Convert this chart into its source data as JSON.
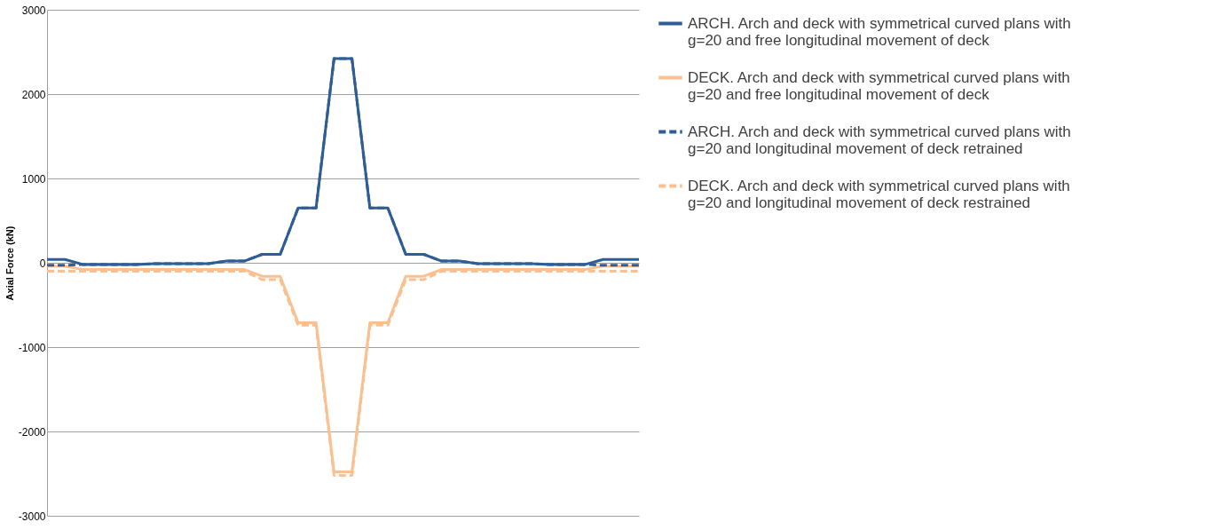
{
  "chart_data": {
    "type": "line",
    "ylabel": "Axial Force (kN)",
    "categories": [
      null,
      null,
      null,
      null,
      null,
      null,
      null,
      null,
      null,
      null,
      null,
      null,
      null,
      null,
      null,
      null,
      null,
      null,
      null,
      null,
      null,
      null,
      null,
      null,
      null,
      null,
      null,
      null,
      null,
      null,
      null,
      null,
      null,
      null
    ],
    "series": [
      {
        "name": "ARCH. Arch and deck with symmetrical curved plans with g=20 and free longitudinal movement of deck",
        "color": "#2f5d95",
        "line_style": "solid",
        "values": [
          40,
          40,
          -20,
          -20,
          -20,
          -20,
          -10,
          -10,
          -10,
          -10,
          20,
          20,
          100,
          100,
          650,
          650,
          2420,
          2420,
          650,
          650,
          100,
          100,
          20,
          20,
          -10,
          -10,
          -10,
          -10,
          -20,
          -20,
          -20,
          40,
          40,
          40
        ]
      },
      {
        "name": "DECK. Arch and deck with symmetrical curved plans with g=20 and free longitudinal movement of deck",
        "color": "#fac090",
        "line_style": "solid",
        "values": [
          -40,
          -40,
          -80,
          -80,
          -80,
          -80,
          -80,
          -80,
          -80,
          -80,
          -80,
          -80,
          -160,
          -160,
          -710,
          -710,
          -2480,
          -2480,
          -710,
          -710,
          -160,
          -160,
          -80,
          -80,
          -80,
          -80,
          -80,
          -80,
          -80,
          -80,
          -80,
          -40,
          -40,
          -40
        ]
      },
      {
        "name": "ARCH. Arch and deck with symmetrical curved plans with g=20 and longitudinal movement of deck retrained",
        "color": "#2f5d95",
        "line_style": "dashed",
        "values": [
          -30,
          -30,
          -20,
          -20,
          -20,
          -20,
          -10,
          -10,
          -10,
          -10,
          20,
          20,
          100,
          100,
          650,
          650,
          2420,
          2420,
          650,
          650,
          100,
          100,
          20,
          20,
          -10,
          -10,
          -10,
          -10,
          -20,
          -20,
          -20,
          -30,
          -30,
          -30
        ]
      },
      {
        "name": "DECK. Arch and deck with symmetrical curved plans with g=20 and longitudinal movement of deck restrained",
        "color": "#fac090",
        "line_style": "dashed",
        "values": [
          -100,
          -100,
          -100,
          -100,
          -100,
          -100,
          -100,
          -100,
          -100,
          -100,
          -100,
          -100,
          -200,
          -200,
          -740,
          -740,
          -2520,
          -2520,
          -740,
          -740,
          -200,
          -200,
          -100,
          -100,
          -100,
          -100,
          -100,
          -100,
          -100,
          -100,
          -100,
          -100,
          -100,
          -100
        ]
      }
    ],
    "ylim": [
      -3000,
      3000
    ],
    "yticks": [
      -3000,
      -2000,
      -1000,
      0,
      1000,
      2000,
      3000
    ],
    "grid": "y",
    "legend": "right",
    "tick_labels": "y"
  }
}
